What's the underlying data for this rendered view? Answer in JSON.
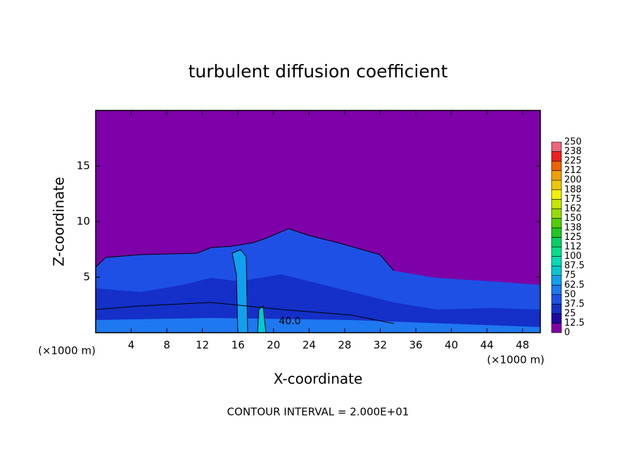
{
  "chart_data": {
    "type": "contour",
    "title": "turbulent diffusion coefficient",
    "xlabel": "X-coordinate",
    "ylabel": "Z-coordinate",
    "x_unit": "(×1000 m)",
    "footer": "CONTOUR INTERVAL = 2.000E+01",
    "annotation": "40.0",
    "xlim": [
      0,
      50
    ],
    "ylim": [
      0,
      20
    ],
    "xticks": [
      4,
      8,
      12,
      16,
      20,
      24,
      28,
      32,
      36,
      40,
      44,
      48
    ],
    "yticks": [
      5,
      10,
      15
    ],
    "colorbar": {
      "levels": [
        0,
        12.5,
        25,
        37.5,
        50,
        62.5,
        75,
        87.5,
        100,
        112,
        125,
        138,
        150,
        162,
        175,
        188,
        200,
        212,
        225,
        238,
        250
      ],
      "colors": [
        "#7d00a8",
        "#1e0aa0",
        "#1430c8",
        "#1e50e6",
        "#1e78f0",
        "#10a0f0",
        "#00c8d2",
        "#00dcb4",
        "#00e08c",
        "#00d264",
        "#20c820",
        "#50d000",
        "#96dc00",
        "#c8e600",
        "#f0f000",
        "#f0c800",
        "#f0a000",
        "#f06400",
        "#f01e1e",
        "#f06478"
      ]
    }
  }
}
